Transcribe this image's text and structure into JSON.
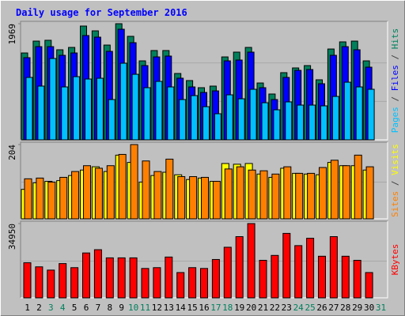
{
  "chart_data": {
    "type": "bar",
    "title": "Daily usage for September 2016",
    "categories": [
      "1",
      "2",
      "3",
      "4",
      "5",
      "6",
      "7",
      "8",
      "9",
      "10",
      "11",
      "12",
      "13",
      "14",
      "15",
      "16",
      "17",
      "18",
      "19",
      "20",
      "21",
      "22",
      "23",
      "24",
      "25",
      "26",
      "27",
      "28",
      "29",
      "30",
      "31"
    ],
    "category_colors": [
      "#000000",
      "#000000",
      "#00805c",
      "#00805c",
      "#000000",
      "#000000",
      "#000000",
      "#000000",
      "#000000",
      "#00805c",
      "#00805c",
      "#000000",
      "#000000",
      "#000000",
      "#000000",
      "#000000",
      "#00805c",
      "#00805c",
      "#000000",
      "#000000",
      "#000000",
      "#000000",
      "#000000",
      "#00805c",
      "#00805c",
      "#000000",
      "#000000",
      "#000000",
      "#000000",
      "#000000",
      "#00805c"
    ],
    "separator": " / ",
    "panels": [
      {
        "ylim": [
          0,
          1969
        ],
        "yticks": [
          1969
        ],
        "series": [
          {
            "name": "Hits",
            "color": "#00805c",
            "values": [
              1473,
              1674,
              1688,
              1527,
              1567,
              1929,
              1848,
              1607,
              1969,
              1755,
              1339,
              1514,
              1514,
              1125,
              1005,
              884,
              911,
              1406,
              1487,
              1567,
              964,
              777,
              1139,
              1219,
              1259,
              1018,
              1540,
              1661,
              1674,
              1339,
              null
            ]
          },
          {
            "name": "Files",
            "color": "#0000ff",
            "values": [
              1393,
              1580,
              1580,
              1433,
              1473,
              1768,
              1741,
              1500,
              1875,
              1647,
              1259,
              1406,
              1420,
              1045,
              897,
              803,
              830,
              1339,
              1353,
              1487,
              884,
              683,
              1058,
              1178,
              1192,
              951,
              1433,
              1580,
              1527,
              1232,
              null
            ]
          },
          {
            "name": "Pages",
            "color": "#00c0ff",
            "values": [
              1058,
              911,
              1379,
              897,
              1071,
              1031,
              1044,
              683,
              1299,
              1111,
              884,
              991,
              897,
              683,
              750,
              562,
              442,
              763,
              696,
              857,
              629,
              509,
              643,
              589,
              589,
              576,
              736,
              977,
              897,
              857,
              null
            ]
          }
        ]
      },
      {
        "ylim": [
          0,
          204
        ],
        "yticks": [
          204
        ],
        "series": [
          {
            "name": "Visits",
            "color": "#ffff00",
            "values": [
              81,
              99,
              103,
              105,
              119,
              134,
              143,
              130,
              175,
              155,
              101,
              119,
              128,
              121,
              108,
              112,
              103,
              152,
              150,
              152,
              123,
              114,
              139,
              125,
              123,
              121,
              155,
              146,
              146,
              134,
              null
            ]
          },
          {
            "name": "Sites",
            "color": "#ff8000",
            "values": [
              110,
              112,
              101,
              114,
              130,
              146,
              139,
              146,
              177,
              204,
              159,
              130,
              164,
              116,
              116,
              114,
              103,
              137,
              143,
              134,
              132,
              123,
              143,
              125,
              125,
              141,
              161,
              146,
              175,
              143,
              null
            ]
          }
        ]
      },
      {
        "ylim": [
          0,
          34950
        ],
        "yticks": [
          34950
        ],
        "series": [
          {
            "name": "KBytes",
            "color": "#ff0000",
            "values": [
              16512,
              14592,
              13056,
              16128,
              14208,
              21120,
              22656,
              18816,
              18816,
              18816,
              13824,
              14208,
              19200,
              11904,
              14208,
              13824,
              18048,
              23808,
              28800,
              34950,
              17664,
              19968,
              30336,
              24576,
              28032,
              19584,
              28800,
              19584,
              17664,
              11904,
              null
            ]
          }
        ]
      }
    ]
  }
}
